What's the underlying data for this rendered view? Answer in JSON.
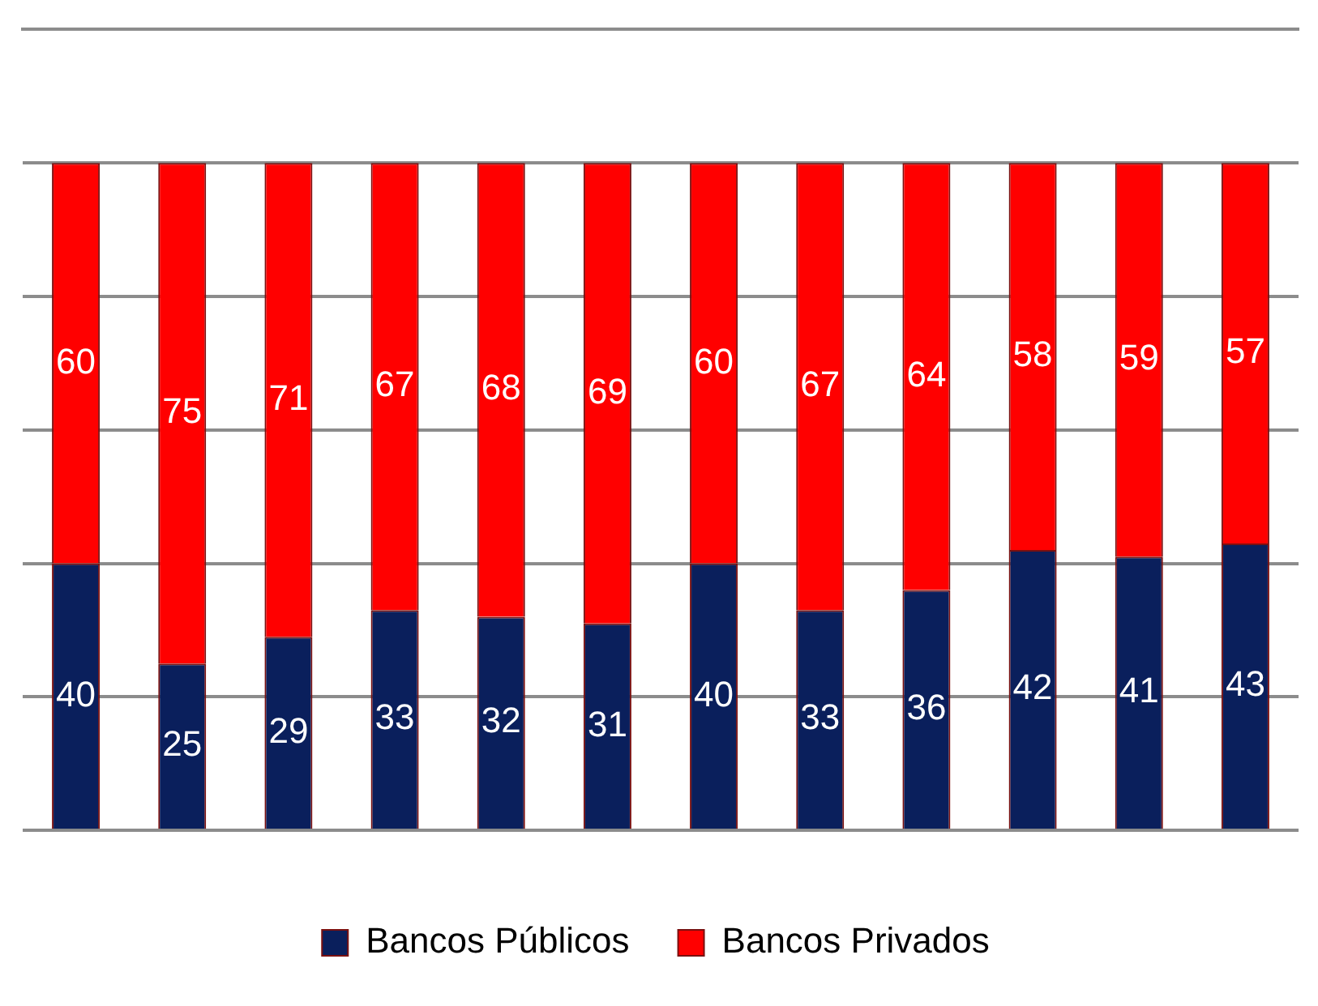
{
  "chart_data": {
    "type": "bar",
    "stacked": true,
    "categories": [
      null,
      null,
      null,
      null,
      null,
      null,
      null,
      null,
      null,
      null,
      null,
      null
    ],
    "series": [
      {
        "name": "Bancos Públicos",
        "color": "#0a1f5c",
        "values": [
          40,
          25,
          29,
          33,
          32,
          31,
          40,
          33,
          36,
          42,
          41,
          43
        ]
      },
      {
        "name": "Bancos Privados",
        "color": "#ff0000",
        "values": [
          60,
          75,
          71,
          67,
          68,
          69,
          60,
          67,
          64,
          58,
          59,
          57
        ]
      }
    ],
    "ylim": [
      0,
      120
    ],
    "yticks": [
      {
        "value": 0,
        "label": null
      },
      {
        "value": 20,
        "label": null
      },
      {
        "value": 40,
        "label": null
      },
      {
        "value": 60,
        "label": null
      },
      {
        "value": 80,
        "label": null
      },
      {
        "value": 100,
        "label": null
      }
    ],
    "grid": "y",
    "legend": "bottom",
    "data_labels": true
  }
}
